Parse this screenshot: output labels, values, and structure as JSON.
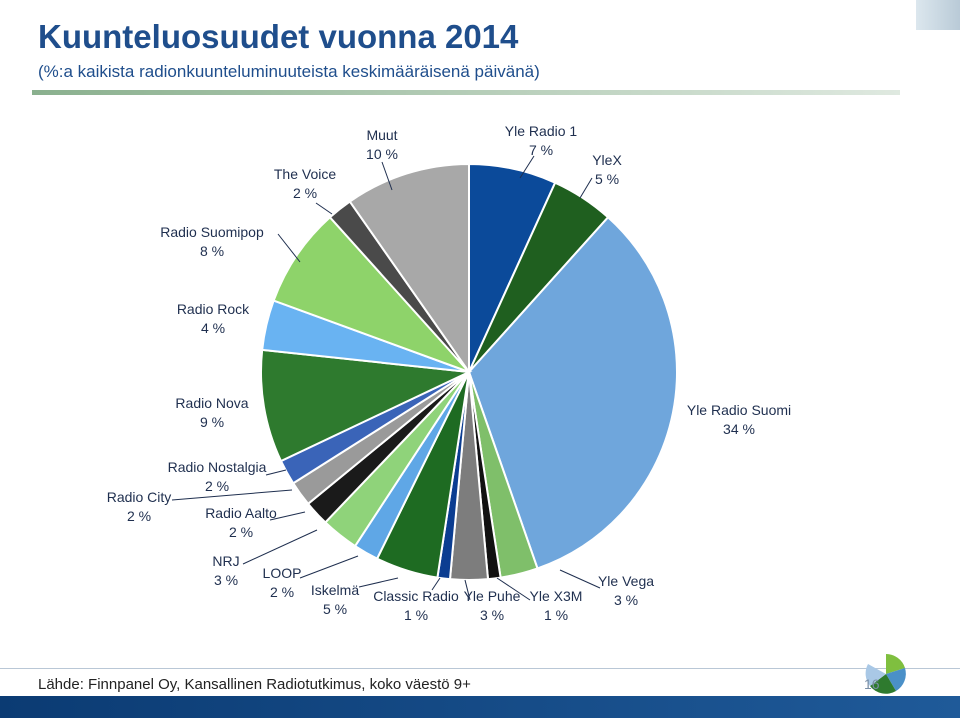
{
  "header": {
    "title": "Kuunteluosuudet vuonna 2014",
    "subtitle": "(%:a kaikista radionkuunteluminuuteista keskimääräisenä päivänä)"
  },
  "footer": {
    "source": "Lähde: Finnpanel Oy, Kansallinen Radiotutkimus, koko väestö 9+",
    "page_number": "16"
  },
  "chart_data": {
    "type": "pie",
    "title": "Kuunteluosuudet vuonna 2014",
    "subtitle": "(%:a kaikista radionkuunteluminuuteista keskimääräisenä päivänä)",
    "start": "12 o'clock, clockwise",
    "slices": [
      {
        "name": "Yle Radio 1",
        "value": 7,
        "label": "7 %",
        "color": "#0b4a9a"
      },
      {
        "name": "YleX",
        "value": 5,
        "label": "5 %",
        "color": "#1f5f1f"
      },
      {
        "name": "Yle Radio Suomi",
        "value": 34,
        "label": "34 %",
        "color": "#6fa6dc"
      },
      {
        "name": "Yle Vega",
        "value": 3,
        "label": "3 %",
        "color": "#7fbf6a"
      },
      {
        "name": "Yle X3M",
        "value": 1,
        "label": "1 %",
        "color": "#111111"
      },
      {
        "name": "Yle Puhe",
        "value": 3,
        "label": "3 %",
        "color": "#7d7d7d"
      },
      {
        "name": "Classic Radio",
        "value": 1,
        "label": "1 %",
        "color": "#0b3d91"
      },
      {
        "name": "Iskelmä",
        "value": 5,
        "label": "5 %",
        "color": "#1e6b22"
      },
      {
        "name": "LOOP",
        "value": 2,
        "label": "2 %",
        "color": "#5fa7e6"
      },
      {
        "name": "NRJ",
        "value": 3,
        "label": "3 %",
        "color": "#8fd37a"
      },
      {
        "name": "Radio Aalto",
        "value": 2,
        "label": "2 %",
        "color": "#1a1a1a"
      },
      {
        "name": "Radio City",
        "value": 2,
        "label": "2 %",
        "color": "#9a9a9a"
      },
      {
        "name": "Radio Nostalgia",
        "value": 2,
        "label": "2 %",
        "color": "#3a64b8"
      },
      {
        "name": "Radio Nova",
        "value": 9,
        "label": "9 %",
        "color": "#2e7a2e"
      },
      {
        "name": "Radio Rock",
        "value": 4,
        "label": "4 %",
        "color": "#69b3f2"
      },
      {
        "name": "Radio Suomipop",
        "value": 8,
        "label": "8 %",
        "color": "#8ed36a"
      },
      {
        "name": "The Voice",
        "value": 2,
        "label": "2 %",
        "color": "#4a4a4a"
      },
      {
        "name": "Muut",
        "value": 10,
        "label": "10 %",
        "color": "#a8a8a8"
      }
    ]
  }
}
